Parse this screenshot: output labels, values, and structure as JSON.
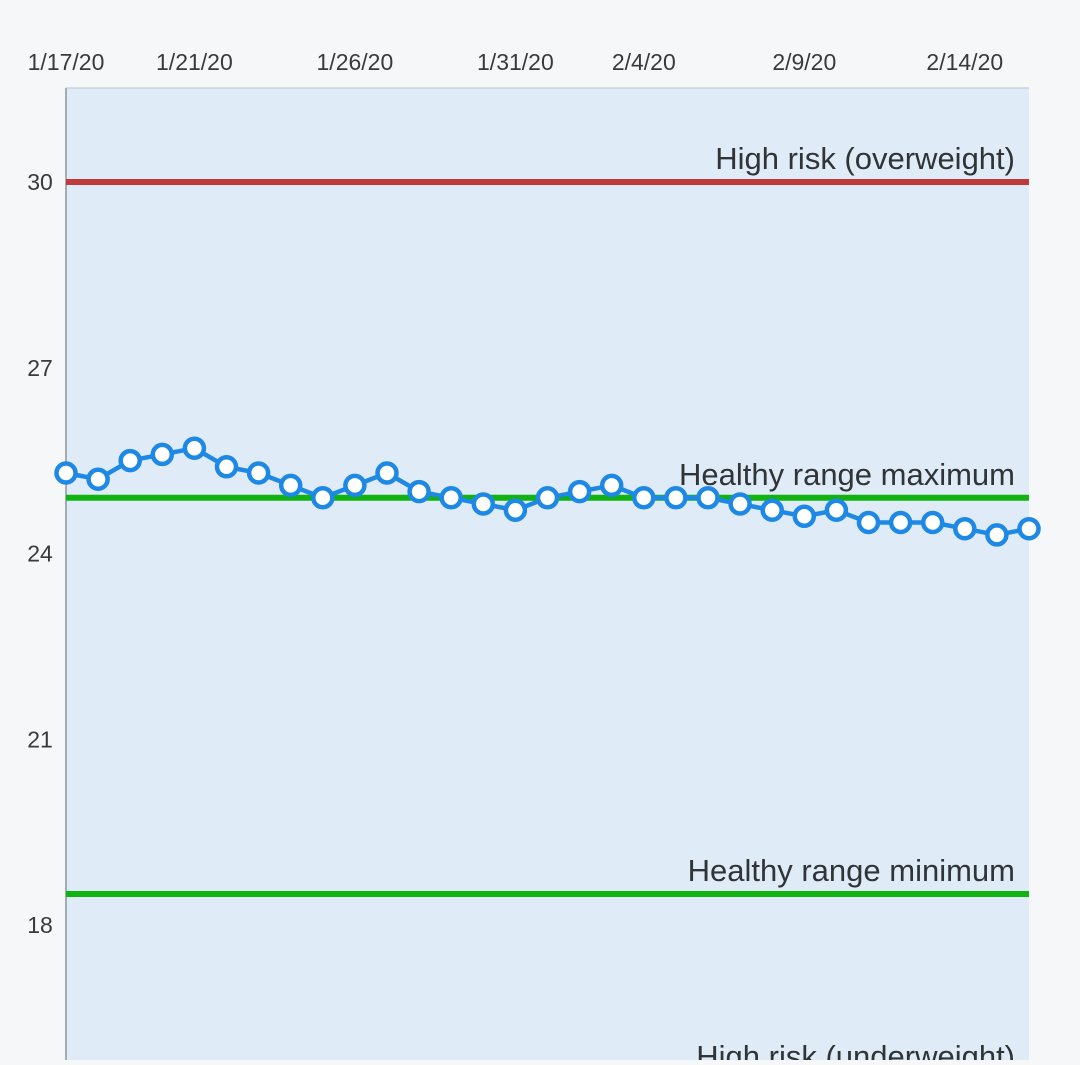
{
  "chart_data": {
    "type": "line",
    "title": "",
    "xlabel": "",
    "ylabel": "",
    "x_ticks": [
      "1/17/20",
      "1/21/20",
      "1/26/20",
      "1/31/20",
      "2/4/20",
      "2/9/20",
      "2/14/20"
    ],
    "y_ticks": [
      18,
      21,
      24,
      27,
      30
    ],
    "ylim": [
      15.4,
      31.5
    ],
    "grid": false,
    "colors": {
      "plot_background": "#dfebf7",
      "series": "#1e88e5",
      "risk_line": "#c0393b",
      "healthy_line": "#11b311"
    },
    "series": [
      {
        "x": [
          "1/17/20",
          "1/18/20",
          "1/19/20",
          "1/20/20",
          "1/21/20",
          "1/22/20",
          "1/23/20",
          "1/24/20",
          "1/25/20",
          "1/26/20",
          "1/27/20",
          "1/28/20",
          "1/29/20",
          "1/30/20",
          "1/31/20",
          "2/1/20",
          "2/2/20",
          "2/3/20",
          "2/4/20",
          "2/5/20",
          "2/6/20",
          "2/7/20",
          "2/8/20",
          "2/9/20",
          "2/10/20",
          "2/11/20",
          "2/12/20",
          "2/13/20",
          "2/14/20",
          "2/15/20",
          "2/16/20"
        ],
        "values": [
          25.3,
          25.2,
          25.5,
          25.6,
          25.7,
          25.4,
          25.3,
          25.1,
          24.9,
          25.1,
          25.3,
          25.0,
          24.9,
          24.8,
          24.7,
          24.9,
          25.0,
          25.1,
          24.9,
          24.9,
          24.9,
          24.8,
          24.7,
          24.6,
          24.7,
          24.5,
          24.5,
          24.5,
          24.4,
          24.3,
          24.4
        ]
      }
    ],
    "reference_lines": [
      {
        "label": "High risk (overweight)",
        "value": 30,
        "kind": "risk"
      },
      {
        "label": "Healthy range maximum",
        "value": 24.9,
        "kind": "healthy"
      },
      {
        "label": "Healthy range minimum",
        "value": 18.5,
        "kind": "healthy"
      },
      {
        "label": "High risk (underweight)",
        "value": 15.5,
        "kind": "risk"
      }
    ]
  }
}
